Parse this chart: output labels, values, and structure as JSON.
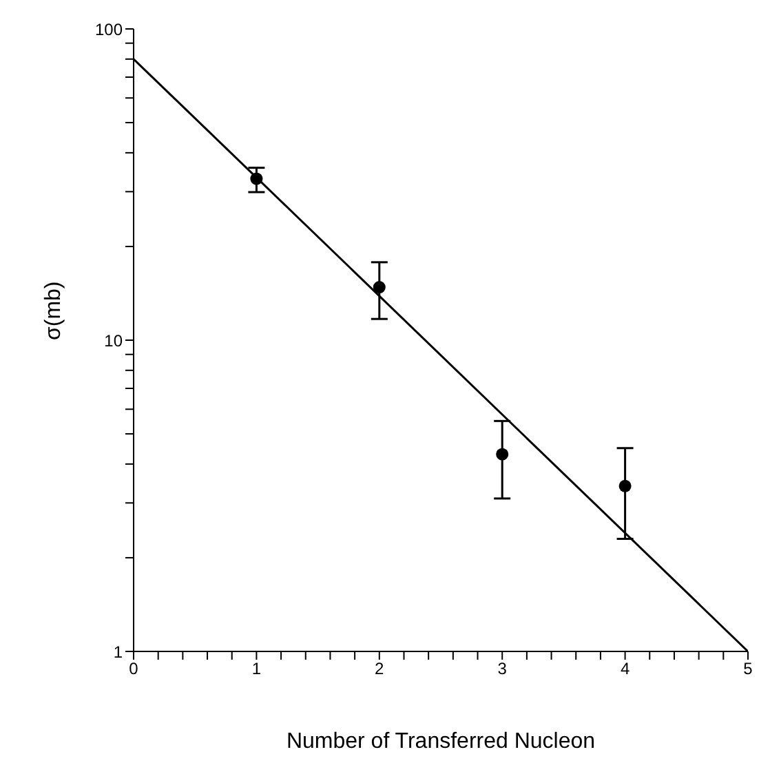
{
  "chart_data": {
    "type": "scatter",
    "xlabel": "Number of Transferred Nucleon",
    "ylabel": "σ(mb)",
    "log": "y",
    "grid": false,
    "marker": "circle",
    "xlim": [
      0,
      5
    ],
    "xticks": [
      0,
      {
        "value": 0.2,
        "label": null
      },
      {
        "value": 0.4,
        "label": null
      },
      {
        "value": 0.6,
        "label": null
      },
      {
        "value": 0.8,
        "label": null
      },
      1,
      {
        "value": 1.2,
        "label": null
      },
      {
        "value": 1.4,
        "label": null
      },
      {
        "value": 1.6,
        "label": null
      },
      {
        "value": 1.8,
        "label": null
      },
      2,
      {
        "value": 2.2,
        "label": null
      },
      {
        "value": 2.4,
        "label": null
      },
      {
        "value": 2.6,
        "label": null
      },
      {
        "value": 2.8,
        "label": null
      },
      3,
      {
        "value": 3.2,
        "label": null
      },
      {
        "value": 3.4,
        "label": null
      },
      {
        "value": 3.6,
        "label": null
      },
      {
        "value": 3.8,
        "label": null
      },
      4,
      {
        "value": 4.2,
        "label": null
      },
      {
        "value": 4.4,
        "label": null
      },
      {
        "value": 4.6,
        "label": null
      },
      {
        "value": 4.8,
        "label": null
      },
      5
    ],
    "ylim": [
      1,
      100
    ],
    "yticks": [
      1,
      {
        "value": 2,
        "label": null
      },
      {
        "value": 3,
        "label": null
      },
      {
        "value": 4,
        "label": null
      },
      {
        "value": 5,
        "label": null
      },
      {
        "value": 6,
        "label": null
      },
      {
        "value": 7,
        "label": null
      },
      {
        "value": 8,
        "label": null
      },
      {
        "value": 9,
        "label": null
      },
      10,
      {
        "value": 20,
        "label": null
      },
      {
        "value": 30,
        "label": null
      },
      {
        "value": 40,
        "label": null
      },
      {
        "value": 50,
        "label": null
      },
      {
        "value": 60,
        "label": null
      },
      {
        "value": 70,
        "label": null
      },
      {
        "value": 80,
        "label": null
      },
      {
        "value": 90,
        "label": null
      },
      100
    ],
    "series": [
      {
        "color": "#000000",
        "x": [
          1,
          2,
          3,
          4
        ],
        "values": [
          33,
          14.8,
          4.3,
          3.4
        ],
        "errors": [
          [
            29.9,
            35.8
          ],
          [
            11.7,
            17.8
          ],
          [
            3.1,
            5.5
          ],
          [
            2.3,
            4.5
          ]
        ]
      },
      {
        "type": "line",
        "color": "#000000",
        "marker": "none",
        "x": [
          0,
          5
        ],
        "values": [
          80,
          1.0
        ]
      }
    ]
  }
}
